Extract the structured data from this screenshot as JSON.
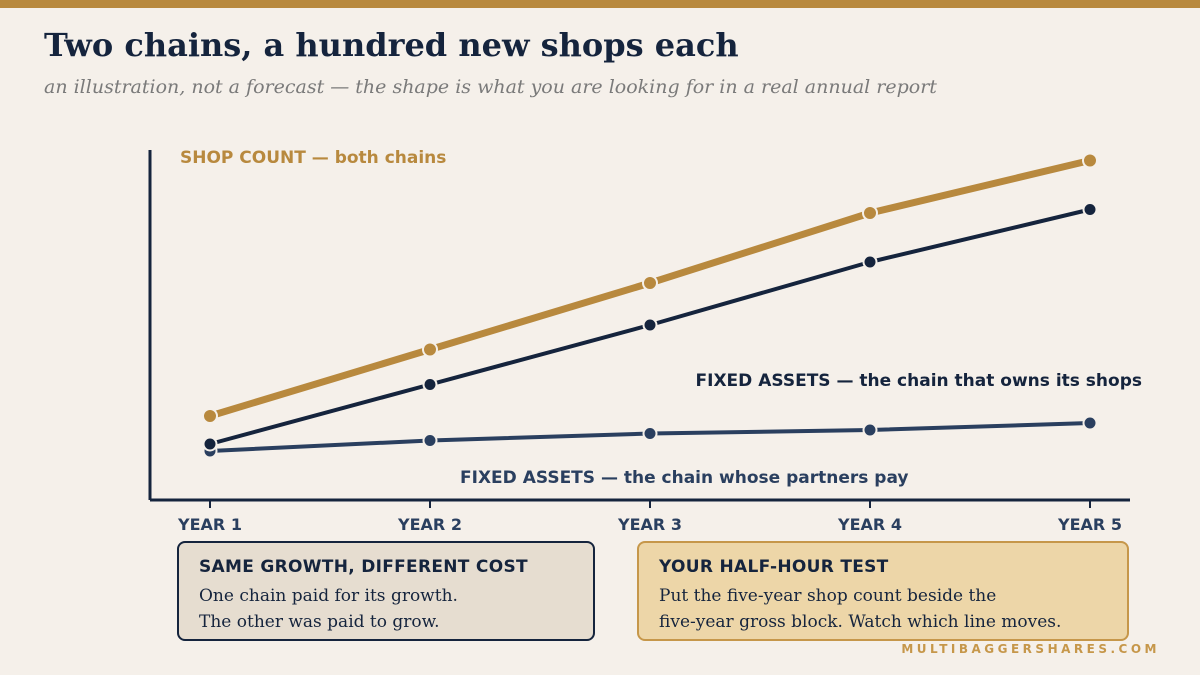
{
  "title": "Two chains, a hundred new shops each",
  "subtitle": "an illustration, not a forecast — the shape is what you are looking for in a real annual report",
  "colors": {
    "gold": "#b8893e",
    "navy": "#15243d",
    "slate": "#2a3f5f"
  },
  "chart_data": {
    "type": "line",
    "categories": [
      "YEAR 1",
      "YEAR 2",
      "YEAR 3",
      "YEAR 4",
      "YEAR 5"
    ],
    "ylim": [
      0,
      100
    ],
    "grid": false,
    "series": [
      {
        "name": "SHOP COUNT — both chains",
        "values": [
          24,
          43,
          62,
          82,
          97
        ],
        "color": "#b8893e"
      },
      {
        "name": "FIXED ASSETS — the chain that owns its shops",
        "values": [
          16,
          33,
          50,
          68,
          83
        ],
        "color": "#15243d"
      },
      {
        "name": "FIXED ASSETS — the chain whose partners pay",
        "values": [
          14,
          17,
          19,
          20,
          22
        ],
        "color": "#2a3f5f"
      }
    ]
  },
  "cards": {
    "left": {
      "title": "SAME GROWTH, DIFFERENT COST",
      "lines": [
        "One chain paid for its growth.",
        "The other was paid to grow."
      ]
    },
    "right": {
      "title": "YOUR HALF-HOUR TEST",
      "lines": [
        "Put the five-year shop count beside the",
        "five-year gross block. Watch which line moves."
      ]
    }
  },
  "footer": "MULTIBAGGERSHARES.COM"
}
